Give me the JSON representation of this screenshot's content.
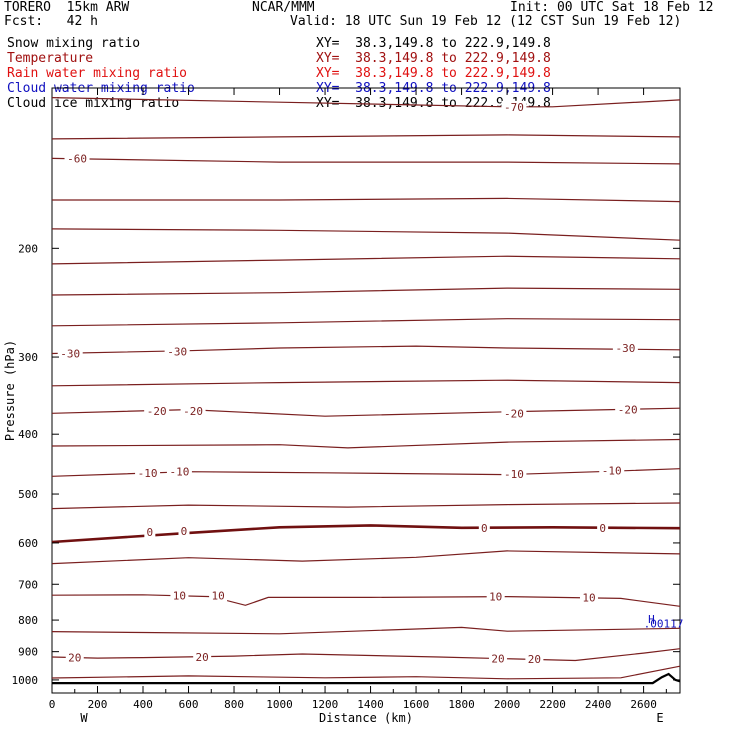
{
  "header": {
    "model": "TORERO  15km ARW",
    "center": "NCAR/MMM",
    "init": "Init: 00 UTC Sat 18 Feb 12",
    "fcst": "Fcst:   42 h",
    "valid": "Valid: 18 UTC Sun 19 Feb 12 (12 CST Sun 19 Feb 12)"
  },
  "fields": [
    {
      "name": "Snow mixing ratio",
      "xy": "XY=  38.3,149.8 to 222.9,149.8",
      "color": "#000000"
    },
    {
      "name": "Temperature",
      "xy": "XY=  38.3,149.8 to 222.9,149.8",
      "color": "#a01010"
    },
    {
      "name": "Rain water mixing ratio",
      "xy": "XY=  38.3,149.8 to 222.9,149.8",
      "color": "#e01010"
    },
    {
      "name": "Cloud water mixing ratio",
      "xy": "XY=  38.3,149.8 to 222.9,149.8",
      "color": "#1010c0"
    },
    {
      "name": "Cloud ice mixing ratio",
      "xy": "XY=  38.3,149.8 to 222.9,149.8",
      "color": "#000000"
    }
  ],
  "colors": {
    "temperature": "#7a1f1f",
    "zero_isotherm": "#701010",
    "terrain": "#000000",
    "cloud_water": "#1010c0"
  },
  "chart_data": {
    "type": "contour-cross-section",
    "xlabel": "Distance (km)",
    "ylabel": "Pressure (hPa)",
    "xlim": [
      0,
      2760
    ],
    "ylim": [
      1050,
      110
    ],
    "y_scale": "log",
    "x_ticks": [
      0,
      200,
      400,
      600,
      800,
      1000,
      1200,
      1400,
      1600,
      1800,
      2000,
      2200,
      2400,
      2600
    ],
    "y_ticks": [
      200,
      300,
      400,
      500,
      600,
      700,
      800,
      900,
      1000
    ],
    "end_labels": {
      "left": "W",
      "right": "E"
    },
    "temperature_contours": [
      {
        "value": -70,
        "points": [
          [
            0,
            114
          ],
          [
            1000,
            116
          ],
          [
            2000,
            118
          ],
          [
            2200,
            118
          ],
          [
            2760,
            115
          ]
        ]
      },
      {
        "value": -65,
        "points": [
          [
            0,
            133
          ],
          [
            1000,
            132
          ],
          [
            2000,
            131
          ],
          [
            2760,
            132
          ]
        ]
      },
      {
        "value": -60,
        "points": [
          [
            0,
            143
          ],
          [
            1000,
            145
          ],
          [
            2000,
            145
          ],
          [
            2760,
            146
          ]
        ]
      },
      {
        "value": -55,
        "points": [
          [
            0,
            167
          ],
          [
            1000,
            167
          ],
          [
            2000,
            166
          ],
          [
            2760,
            168
          ]
        ]
      },
      {
        "value": -50,
        "points": [
          [
            0,
            186
          ],
          [
            1000,
            187
          ],
          [
            2000,
            189
          ],
          [
            2760,
            194
          ]
        ]
      },
      {
        "value": -45,
        "points": [
          [
            0,
            212
          ],
          [
            1000,
            209
          ],
          [
            2000,
            206
          ],
          [
            2760,
            208
          ]
        ]
      },
      {
        "value": -40,
        "points": [
          [
            0,
            238
          ],
          [
            1000,
            236
          ],
          [
            2000,
            232
          ],
          [
            2760,
            233
          ]
        ]
      },
      {
        "value": -35,
        "points": [
          [
            0,
            267
          ],
          [
            1000,
            264
          ],
          [
            2000,
            260
          ],
          [
            2760,
            261
          ]
        ]
      },
      {
        "value": -30,
        "points": [
          [
            0,
            296
          ],
          [
            600,
            293
          ],
          [
            1000,
            290
          ],
          [
            1600,
            288
          ],
          [
            2000,
            290
          ],
          [
            2760,
            292
          ]
        ]
      },
      {
        "value": -25,
        "points": [
          [
            0,
            334
          ],
          [
            1000,
            330
          ],
          [
            2000,
            327
          ],
          [
            2760,
            330
          ]
        ]
      },
      {
        "value": -20,
        "points": [
          [
            0,
            370
          ],
          [
            600,
            365
          ],
          [
            1200,
            374
          ],
          [
            2000,
            368
          ],
          [
            2760,
            363
          ]
        ]
      },
      {
        "value": -15,
        "points": [
          [
            0,
            418
          ],
          [
            1000,
            416
          ],
          [
            1300,
            421
          ],
          [
            2000,
            412
          ],
          [
            2760,
            408
          ]
        ]
      },
      {
        "value": -10,
        "points": [
          [
            0,
            468
          ],
          [
            600,
            460
          ],
          [
            1200,
            462
          ],
          [
            2000,
            465
          ],
          [
            2400,
            460
          ],
          [
            2760,
            455
          ]
        ]
      },
      {
        "value": -5,
        "points": [
          [
            0,
            528
          ],
          [
            600,
            521
          ],
          [
            1300,
            525
          ],
          [
            2000,
            520
          ],
          [
            2760,
            517
          ]
        ]
      },
      {
        "value": 0,
        "points": [
          [
            0,
            598
          ],
          [
            600,
            578
          ],
          [
            1000,
            566
          ],
          [
            1400,
            562
          ],
          [
            1800,
            567
          ],
          [
            2200,
            566
          ],
          [
            2760,
            568
          ]
        ]
      },
      {
        "value": 5,
        "points": [
          [
            0,
            648
          ],
          [
            600,
            634
          ],
          [
            1100,
            642
          ],
          [
            1600,
            633
          ],
          [
            2000,
            618
          ],
          [
            2760,
            625
          ]
        ]
      },
      {
        "value": 10,
        "points": [
          [
            0,
            729
          ],
          [
            400,
            728
          ],
          [
            700,
            733
          ],
          [
            850,
            757
          ],
          [
            950,
            735
          ],
          [
            1400,
            735
          ],
          [
            2000,
            733
          ],
          [
            2500,
            738
          ],
          [
            2760,
            760
          ]
        ]
      },
      {
        "value": 15,
        "points": [
          [
            0,
            835
          ],
          [
            400,
            838
          ],
          [
            1000,
            842
          ],
          [
            1800,
            822
          ],
          [
            2000,
            834
          ],
          [
            2760,
            825
          ]
        ]
      },
      {
        "value": 20,
        "points": [
          [
            0,
            918
          ],
          [
            200,
            922
          ],
          [
            400,
            920
          ],
          [
            800,
            915
          ],
          [
            1100,
            908
          ],
          [
            1700,
            918
          ],
          [
            2300,
            930
          ],
          [
            2600,
            905
          ],
          [
            2760,
            890
          ]
        ]
      },
      {
        "value": 25,
        "points": [
          [
            0,
            993
          ],
          [
            600,
            985
          ],
          [
            1200,
            992
          ],
          [
            1600,
            988
          ],
          [
            2000,
            996
          ],
          [
            2500,
            992
          ],
          [
            2760,
            950
          ]
        ]
      }
    ],
    "temperature_labels": [
      {
        "value": -70,
        "x": 2030,
        "p": 118
      },
      {
        "value": -60,
        "x": 110,
        "p": 143
      },
      {
        "value": -30,
        "x": 80,
        "p": 296
      },
      {
        "value": -30,
        "x": 550,
        "p": 294
      },
      {
        "value": -30,
        "x": 2520,
        "p": 290
      },
      {
        "value": -20,
        "x": 460,
        "p": 367
      },
      {
        "value": -20,
        "x": 620,
        "p": 367
      },
      {
        "value": -20,
        "x": 2030,
        "p": 370
      },
      {
        "value": -20,
        "x": 2530,
        "p": 365
      },
      {
        "value": -10,
        "x": 420,
        "p": 462
      },
      {
        "value": -10,
        "x": 560,
        "p": 460
      },
      {
        "value": -10,
        "x": 2030,
        "p": 464
      },
      {
        "value": -10,
        "x": 2460,
        "p": 458
      },
      {
        "value": 0,
        "x": 430,
        "p": 576
      },
      {
        "value": 0,
        "x": 580,
        "p": 574
      },
      {
        "value": 0,
        "x": 1900,
        "p": 567
      },
      {
        "value": 0,
        "x": 2420,
        "p": 567
      },
      {
        "value": 10,
        "x": 560,
        "p": 730
      },
      {
        "value": 10,
        "x": 730,
        "p": 730
      },
      {
        "value": 10,
        "x": 1950,
        "p": 733
      },
      {
        "value": 10,
        "x": 2360,
        "p": 736
      },
      {
        "value": 20,
        "x": 100,
        "p": 920
      },
      {
        "value": 20,
        "x": 660,
        "p": 918
      },
      {
        "value": 20,
        "x": 1960,
        "p": 924
      },
      {
        "value": 20,
        "x": 2120,
        "p": 925
      }
    ],
    "surface_terrain": [
      [
        0,
        1012
      ],
      [
        1000,
        1012
      ],
      [
        2000,
        1012
      ],
      [
        2640,
        1012
      ],
      [
        2680,
        990
      ],
      [
        2710,
        978
      ],
      [
        2740,
        1000
      ],
      [
        2760,
        1005
      ]
    ],
    "annotations": [
      {
        "text": "H",
        "x": 2620,
        "p": 797,
        "color": "#1010c0"
      },
      {
        "text": ".00117",
        "x": 2600,
        "p": 810,
        "color": "#1010c0"
      }
    ]
  }
}
